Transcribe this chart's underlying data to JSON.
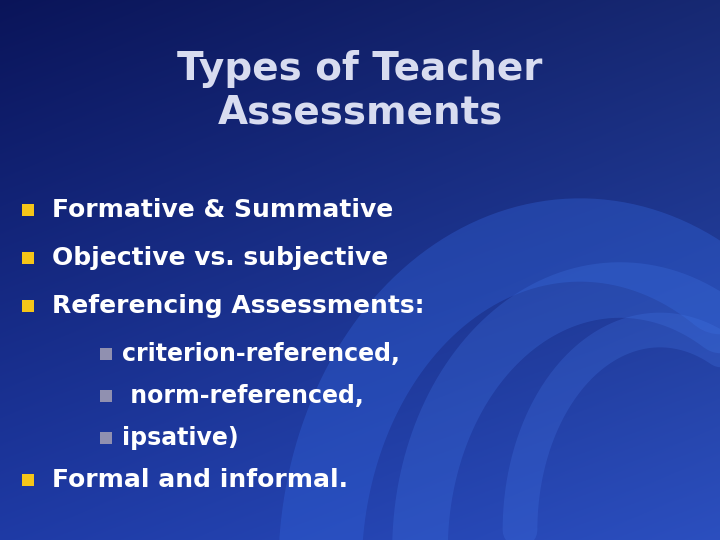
{
  "title_line1": "Types of Teacher",
  "title_line2": "Assessments",
  "title_color": "#D8DCF0",
  "title_fontsize": 28,
  "title_fontweight": "bold",
  "bg_color_topleft": "#071660",
  "bg_color_center": "#1A3DC8",
  "bg_color_bright": "#2255E0",
  "bullet_color": "#F5C518",
  "sub_bullet_color": "#9090B0",
  "text_color": "#FFFFFF",
  "bullet_items": [
    {
      "text": "Formative & Summative",
      "indent": 0
    },
    {
      "text": "Objective vs. subjective",
      "indent": 0
    },
    {
      "text": "Referencing Assessments:",
      "indent": 0
    },
    {
      "text": "criterion-referenced,",
      "indent": 1
    },
    {
      "text": " norm-referenced,",
      "indent": 1
    },
    {
      "text": "ipsative)",
      "indent": 1
    },
    {
      "text": "Formal and informal.",
      "indent": 0
    }
  ],
  "main_fontsize": 18,
  "sub_fontsize": 17,
  "figwidth": 7.2,
  "figheight": 5.4,
  "dpi": 100
}
